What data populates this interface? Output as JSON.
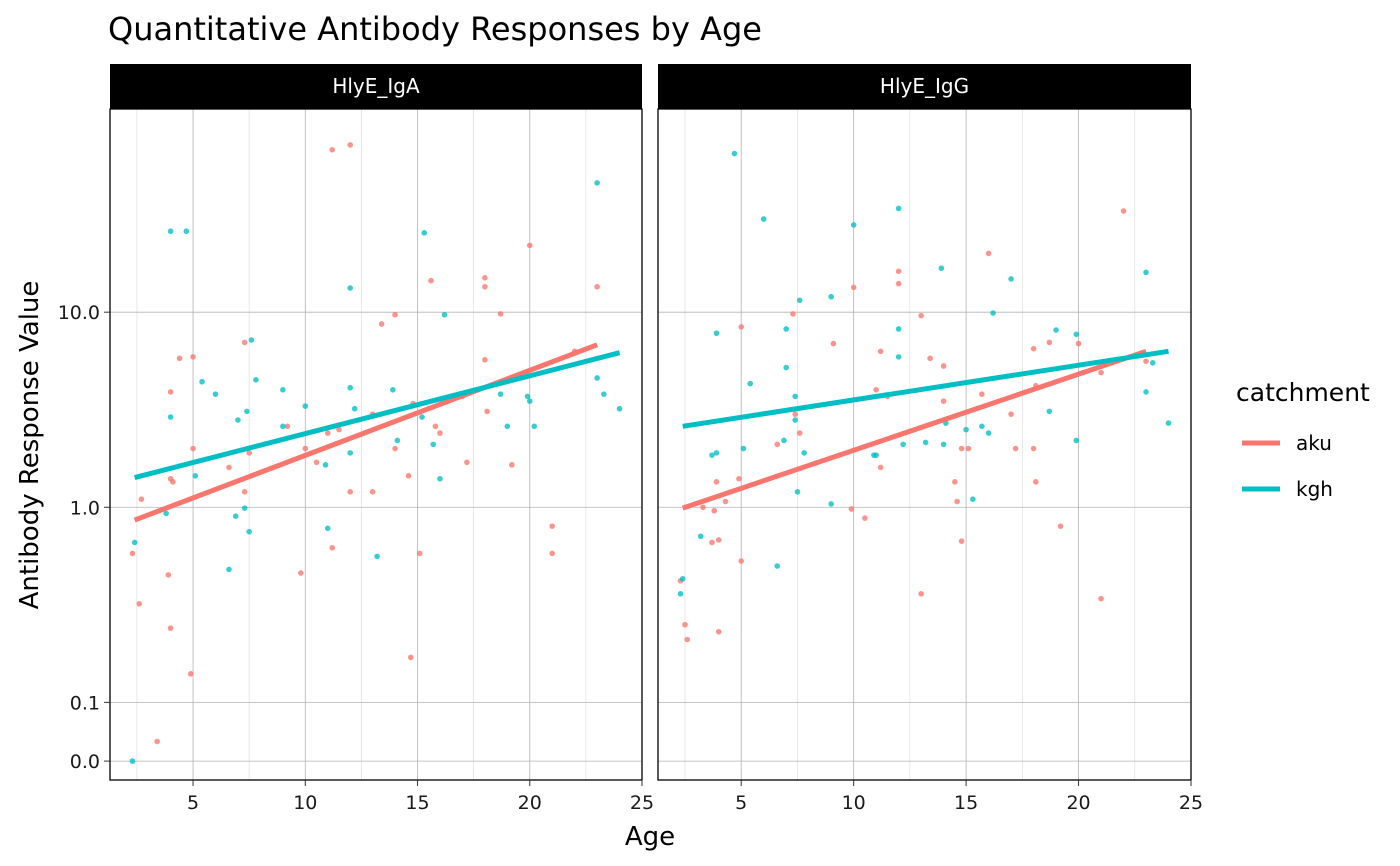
{
  "chart_data": {
    "type": "scatter",
    "title": "Quantitative Antibody Responses by Age",
    "xlabel": "Age",
    "ylabel": "Antibody Response Value",
    "y_scale": "log10",
    "xlim": [
      1.3,
      25
    ],
    "ylim": [
      0.04,
      110
    ],
    "x_ticks": [
      5,
      10,
      15,
      20,
      25
    ],
    "x_tick_labels": [
      "5",
      "10",
      "15",
      "20",
      "25"
    ],
    "y_ticks": [
      0.1,
      1,
      10,
      0.05
    ],
    "y_tick_values": [
      0.05,
      0.1,
      1,
      10
    ],
    "y_tick_labels": [
      "0.0",
      "0.1",
      "1.0",
      "10.0"
    ],
    "grid": true,
    "legend": {
      "title": "catchment",
      "position": "right",
      "entries": [
        {
          "name": "aku",
          "color": "#F8766D"
        },
        {
          "name": "kgh",
          "color": "#00BFC4"
        }
      ]
    },
    "panels": [
      {
        "name": "HlyE_IgA",
        "series": [
          {
            "name": "aku",
            "color": "#F8766D",
            "trend": {
              "x": [
                2.4,
                23
              ],
              "y": [
                0.86,
                6.8
              ]
            },
            "points": [
              {
                "x": 2.3,
                "y": 0.58
              },
              {
                "x": 2.6,
                "y": 0.32
              },
              {
                "x": 2.7,
                "y": 1.1
              },
              {
                "x": 3.4,
                "y": 0.063
              },
              {
                "x": 3.9,
                "y": 0.45
              },
              {
                "x": 4.0,
                "y": 1.4
              },
              {
                "x": 4.0,
                "y": 3.9
              },
              {
                "x": 4.1,
                "y": 1.35
              },
              {
                "x": 4.0,
                "y": 0.24
              },
              {
                "x": 4.4,
                "y": 5.8
              },
              {
                "x": 4.9,
                "y": 0.14
              },
              {
                "x": 5.0,
                "y": 2.0
              },
              {
                "x": 5.0,
                "y": 5.9
              },
              {
                "x": 6.6,
                "y": 1.6
              },
              {
                "x": 7.3,
                "y": 7.0
              },
              {
                "x": 7.3,
                "y": 1.2
              },
              {
                "x": 7.5,
                "y": 1.9
              },
              {
                "x": 9.2,
                "y": 2.6
              },
              {
                "x": 9.8,
                "y": 0.46
              },
              {
                "x": 10.0,
                "y": 2.0
              },
              {
                "x": 10.5,
                "y": 1.7
              },
              {
                "x": 11.0,
                "y": 2.4
              },
              {
                "x": 11.2,
                "y": 0.62
              },
              {
                "x": 11.2,
                "y": 68
              },
              {
                "x": 11.5,
                "y": 2.5
              },
              {
                "x": 12.0,
                "y": 72
              },
              {
                "x": 12.0,
                "y": 1.2
              },
              {
                "x": 13.0,
                "y": 1.2
              },
              {
                "x": 13.0,
                "y": 3.0
              },
              {
                "x": 13.4,
                "y": 8.7
              },
              {
                "x": 14.0,
                "y": 9.7
              },
              {
                "x": 14.0,
                "y": 2.0
              },
              {
                "x": 14.6,
                "y": 1.45
              },
              {
                "x": 14.7,
                "y": 0.17
              },
              {
                "x": 14.8,
                "y": 3.4
              },
              {
                "x": 15.1,
                "y": 0.58
              },
              {
                "x": 15.6,
                "y": 14.5
              },
              {
                "x": 15.8,
                "y": 2.6
              },
              {
                "x": 16.0,
                "y": 2.4
              },
              {
                "x": 17.0,
                "y": 3.7
              },
              {
                "x": 17.2,
                "y": 1.7
              },
              {
                "x": 18.0,
                "y": 15.0
              },
              {
                "x": 18.0,
                "y": 13.5
              },
              {
                "x": 18.0,
                "y": 5.7
              },
              {
                "x": 18.1,
                "y": 3.1
              },
              {
                "x": 18.7,
                "y": 9.8
              },
              {
                "x": 19.2,
                "y": 1.65
              },
              {
                "x": 20.0,
                "y": 22
              },
              {
                "x": 21.0,
                "y": 0.8
              },
              {
                "x": 21.0,
                "y": 0.58
              },
              {
                "x": 22.0,
                "y": 6.3
              },
              {
                "x": 23.0,
                "y": 13.5
              }
            ]
          },
          {
            "name": "kgh",
            "color": "#00BFC4",
            "trend": {
              "x": [
                2.4,
                24
              ],
              "y": [
                1.42,
                6.2
              ]
            },
            "points": [
              {
                "x": 2.3,
                "y": 0.05
              },
              {
                "x": 2.4,
                "y": 0.66
              },
              {
                "x": 3.8,
                "y": 0.93
              },
              {
                "x": 4.0,
                "y": 26
              },
              {
                "x": 4.0,
                "y": 2.9
              },
              {
                "x": 4.7,
                "y": 26
              },
              {
                "x": 5.1,
                "y": 1.45
              },
              {
                "x": 5.4,
                "y": 4.4
              },
              {
                "x": 6.0,
                "y": 3.8
              },
              {
                "x": 6.6,
                "y": 0.48
              },
              {
                "x": 6.9,
                "y": 0.9
              },
              {
                "x": 7.0,
                "y": 2.8
              },
              {
                "x": 7.3,
                "y": 0.99
              },
              {
                "x": 7.4,
                "y": 3.1
              },
              {
                "x": 7.5,
                "y": 0.75
              },
              {
                "x": 7.6,
                "y": 7.2
              },
              {
                "x": 7.8,
                "y": 4.5
              },
              {
                "x": 9.0,
                "y": 4.0
              },
              {
                "x": 9.0,
                "y": 2.6
              },
              {
                "x": 10.0,
                "y": 3.3
              },
              {
                "x": 10.9,
                "y": 1.65
              },
              {
                "x": 11.0,
                "y": 0.78
              },
              {
                "x": 12.0,
                "y": 4.1
              },
              {
                "x": 12.0,
                "y": 13.3
              },
              {
                "x": 12.0,
                "y": 1.9
              },
              {
                "x": 12.2,
                "y": 3.2
              },
              {
                "x": 13.2,
                "y": 0.56
              },
              {
                "x": 13.9,
                "y": 4.0
              },
              {
                "x": 14.1,
                "y": 2.2
              },
              {
                "x": 15.3,
                "y": 25.5
              },
              {
                "x": 15.2,
                "y": 2.9
              },
              {
                "x": 15.7,
                "y": 2.1
              },
              {
                "x": 16.0,
                "y": 1.4
              },
              {
                "x": 16.2,
                "y": 9.7
              },
              {
                "x": 18.7,
                "y": 3.8
              },
              {
                "x": 19.0,
                "y": 2.6
              },
              {
                "x": 19.9,
                "y": 3.7
              },
              {
                "x": 20.0,
                "y": 3.5
              },
              {
                "x": 20.2,
                "y": 2.6
              },
              {
                "x": 23.0,
                "y": 46
              },
              {
                "x": 23.0,
                "y": 4.6
              },
              {
                "x": 23.3,
                "y": 3.8
              },
              {
                "x": 24.0,
                "y": 3.2
              }
            ]
          }
        ]
      },
      {
        "name": "HlyE_IgG",
        "series": [
          {
            "name": "aku",
            "color": "#F8766D",
            "trend": {
              "x": [
                2.4,
                23
              ],
              "y": [
                0.99,
                6.3
              ]
            },
            "points": [
              {
                "x": 2.3,
                "y": 0.42
              },
              {
                "x": 2.5,
                "y": 0.25
              },
              {
                "x": 2.6,
                "y": 0.21
              },
              {
                "x": 3.3,
                "y": 1.0
              },
              {
                "x": 3.7,
                "y": 0.66
              },
              {
                "x": 3.8,
                "y": 0.96
              },
              {
                "x": 3.9,
                "y": 1.35
              },
              {
                "x": 4.0,
                "y": 0.23
              },
              {
                "x": 4.0,
                "y": 0.68
              },
              {
                "x": 4.3,
                "y": 1.07
              },
              {
                "x": 4.9,
                "y": 1.4
              },
              {
                "x": 5.0,
                "y": 8.4
              },
              {
                "x": 5.0,
                "y": 0.53
              },
              {
                "x": 6.6,
                "y": 2.1
              },
              {
                "x": 7.3,
                "y": 9.8
              },
              {
                "x": 7.4,
                "y": 3.0
              },
              {
                "x": 7.6,
                "y": 2.4
              },
              {
                "x": 9.1,
                "y": 6.9
              },
              {
                "x": 9.9,
                "y": 0.98
              },
              {
                "x": 10.0,
                "y": 13.4
              },
              {
                "x": 10.5,
                "y": 0.88
              },
              {
                "x": 11.0,
                "y": 4.0
              },
              {
                "x": 11.2,
                "y": 1.6
              },
              {
                "x": 11.2,
                "y": 6.3
              },
              {
                "x": 11.5,
                "y": 3.7
              },
              {
                "x": 12.0,
                "y": 16.2
              },
              {
                "x": 12.0,
                "y": 14.0
              },
              {
                "x": 13.0,
                "y": 9.6
              },
              {
                "x": 13.0,
                "y": 0.36
              },
              {
                "x": 13.4,
                "y": 5.8
              },
              {
                "x": 14.0,
                "y": 5.3
              },
              {
                "x": 14.0,
                "y": 3.5
              },
              {
                "x": 14.5,
                "y": 1.35
              },
              {
                "x": 14.6,
                "y": 1.07
              },
              {
                "x": 14.8,
                "y": 0.67
              },
              {
                "x": 14.8,
                "y": 2.0
              },
              {
                "x": 15.1,
                "y": 2.0
              },
              {
                "x": 15.7,
                "y": 3.8
              },
              {
                "x": 16.0,
                "y": 20
              },
              {
                "x": 17.0,
                "y": 3.0
              },
              {
                "x": 17.2,
                "y": 2.0
              },
              {
                "x": 18.0,
                "y": 6.5
              },
              {
                "x": 18.1,
                "y": 4.2
              },
              {
                "x": 18.0,
                "y": 2.0
              },
              {
                "x": 18.1,
                "y": 1.35
              },
              {
                "x": 18.7,
                "y": 7.0
              },
              {
                "x": 19.2,
                "y": 0.8
              },
              {
                "x": 20.0,
                "y": 6.9
              },
              {
                "x": 21.0,
                "y": 4.9
              },
              {
                "x": 21.0,
                "y": 0.34
              },
              {
                "x": 22.0,
                "y": 33
              },
              {
                "x": 23.0,
                "y": 5.6
              }
            ]
          },
          {
            "name": "kgh",
            "color": "#00BFC4",
            "trend": {
              "x": [
                2.4,
                24
              ],
              "y": [
                2.6,
                6.3
              ]
            },
            "points": [
              {
                "x": 2.3,
                "y": 0.36
              },
              {
                "x": 2.4,
                "y": 0.43
              },
              {
                "x": 3.2,
                "y": 0.71
              },
              {
                "x": 3.7,
                "y": 1.85
              },
              {
                "x": 3.9,
                "y": 1.9
              },
              {
                "x": 3.9,
                "y": 7.8
              },
              {
                "x": 4.7,
                "y": 65
              },
              {
                "x": 5.1,
                "y": 2.0
              },
              {
                "x": 5.4,
                "y": 4.3
              },
              {
                "x": 6.0,
                "y": 30
              },
              {
                "x": 6.6,
                "y": 0.5
              },
              {
                "x": 6.9,
                "y": 2.2
              },
              {
                "x": 7.0,
                "y": 8.2
              },
              {
                "x": 7.0,
                "y": 5.2
              },
              {
                "x": 7.4,
                "y": 3.7
              },
              {
                "x": 7.4,
                "y": 2.8
              },
              {
                "x": 7.5,
                "y": 1.2
              },
              {
                "x": 7.6,
                "y": 11.5
              },
              {
                "x": 7.8,
                "y": 1.9
              },
              {
                "x": 9.0,
                "y": 12.0
              },
              {
                "x": 9.0,
                "y": 1.04
              },
              {
                "x": 10.0,
                "y": 28
              },
              {
                "x": 10.9,
                "y": 1.85
              },
              {
                "x": 11.0,
                "y": 1.85
              },
              {
                "x": 12.0,
                "y": 34
              },
              {
                "x": 12.0,
                "y": 8.2
              },
              {
                "x": 12.0,
                "y": 5.9
              },
              {
                "x": 12.2,
                "y": 2.1
              },
              {
                "x": 13.2,
                "y": 2.15
              },
              {
                "x": 13.9,
                "y": 16.8
              },
              {
                "x": 14.0,
                "y": 2.1
              },
              {
                "x": 14.1,
                "y": 2.7
              },
              {
                "x": 15.0,
                "y": 2.5
              },
              {
                "x": 15.3,
                "y": 1.1
              },
              {
                "x": 15.7,
                "y": 2.6
              },
              {
                "x": 16.0,
                "y": 2.4
              },
              {
                "x": 16.2,
                "y": 9.9
              },
              {
                "x": 17.0,
                "y": 14.8
              },
              {
                "x": 18.7,
                "y": 3.1
              },
              {
                "x": 19.0,
                "y": 8.1
              },
              {
                "x": 19.9,
                "y": 7.7
              },
              {
                "x": 19.9,
                "y": 2.2
              },
              {
                "x": 20.2,
                "y": 4.9
              },
              {
                "x": 23.0,
                "y": 16.0
              },
              {
                "x": 23.0,
                "y": 3.9
              },
              {
                "x": 23.3,
                "y": 5.5
              },
              {
                "x": 24.0,
                "y": 2.7
              }
            ]
          }
        ]
      }
    ]
  }
}
